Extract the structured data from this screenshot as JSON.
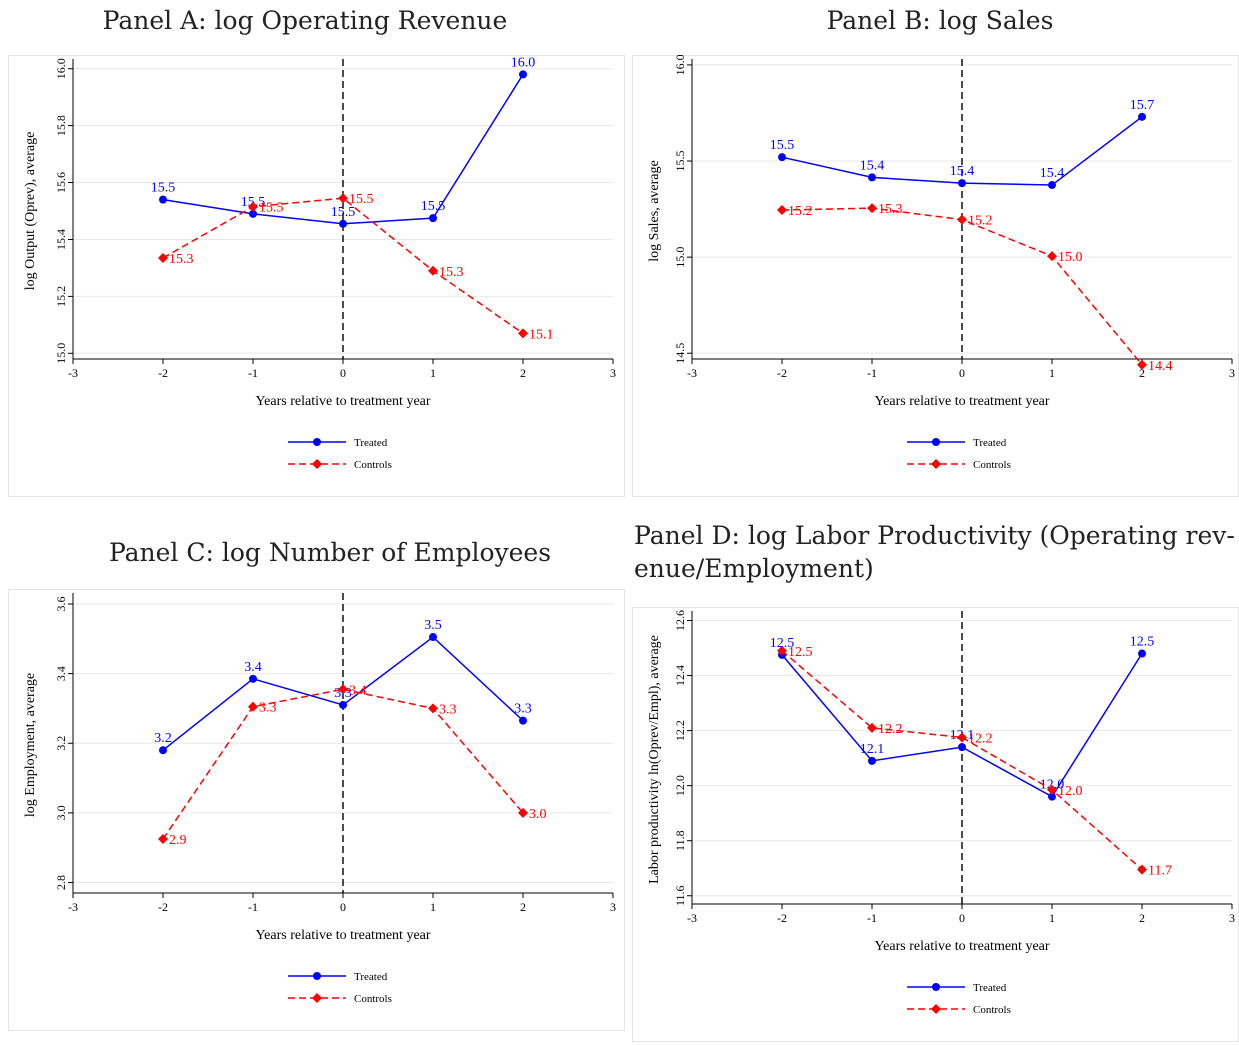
{
  "panels": [
    {
      "title": "Panel A: log Operating Revenue",
      "chart_data": {
        "type": "line",
        "x": [
          -2,
          -1,
          0,
          1,
          2
        ],
        "xticks": [
          -3,
          -2,
          -1,
          0,
          1,
          2,
          3
        ],
        "xlabel": "Years relative to treatment year",
        "ylabel": "log Output (Oprev), average",
        "yticks": [
          "15.0",
          "15.2",
          "15.4",
          "15.6",
          "15.8",
          "16.0"
        ],
        "xlim": [
          -3,
          3
        ],
        "ylim": [
          14.98,
          16.02
        ],
        "grid": true,
        "vline": 0,
        "legend_position": "bottom",
        "series": [
          {
            "name": "Treated",
            "color": "#0000ff",
            "style": "solid",
            "marker": "circle",
            "values": [
              15.54,
              15.49,
              15.455,
              15.475,
              15.98
            ],
            "labels": [
              "15.5",
              "15.5",
              "15.5",
              "15.5",
              "16.0"
            ]
          },
          {
            "name": "Controls",
            "color": "#ff0000",
            "style": "dashed",
            "marker": "diamond",
            "values": [
              15.335,
              15.515,
              15.545,
              15.29,
              15.07
            ],
            "labels": [
              "15.3",
              "15.5",
              "15.5",
              "15.3",
              "15.1"
            ]
          }
        ]
      }
    },
    {
      "title": "Panel B: log Sales",
      "chart_data": {
        "type": "line",
        "x": [
          -2,
          -1,
          0,
          1,
          2
        ],
        "xticks": [
          -3,
          -2,
          -1,
          0,
          1,
          2,
          3
        ],
        "xlabel": "Years relative to treatment year",
        "ylabel": "log Sales, average",
        "yticks": [
          "14.5",
          "15.0",
          "15.5",
          "16.0"
        ],
        "xlim": [
          -3,
          3
        ],
        "ylim": [
          14.47,
          16.01
        ],
        "grid": true,
        "vline": 0,
        "legend_position": "bottom",
        "series": [
          {
            "name": "Treated",
            "color": "#0000ff",
            "style": "solid",
            "marker": "circle",
            "values": [
              15.52,
              15.415,
              15.385,
              15.375,
              15.73
            ],
            "labels": [
              "15.5",
              "15.4",
              "15.4",
              "15.4",
              "15.7"
            ]
          },
          {
            "name": "Controls",
            "color": "#ff0000",
            "style": "dashed",
            "marker": "diamond",
            "values": [
              15.245,
              15.255,
              15.195,
              15.005,
              14.44
            ],
            "labels": [
              "15.2",
              "15.3",
              "15.2",
              "15.0",
              "14.4"
            ]
          }
        ]
      }
    },
    {
      "title": "Panel C: log Number of Employees",
      "chart_data": {
        "type": "line",
        "x": [
          -2,
          -1,
          0,
          1,
          2
        ],
        "xticks": [
          -3,
          -2,
          -1,
          0,
          1,
          2,
          3
        ],
        "xlabel": "Years relative to treatment year",
        "ylabel": "log Employment, average",
        "yticks": [
          "2.8",
          "3.0",
          "3.2",
          "3.4",
          "3.6"
        ],
        "xlim": [
          -3,
          3
        ],
        "ylim": [
          2.77,
          3.62
        ],
        "grid": true,
        "vline": 0,
        "legend_position": "bottom",
        "series": [
          {
            "name": "Treated",
            "color": "#0000ff",
            "style": "solid",
            "marker": "circle",
            "values": [
              3.18,
              3.385,
              3.31,
              3.505,
              3.265
            ],
            "labels": [
              "3.2",
              "3.4",
              "3.3",
              "3.5",
              "3.3"
            ]
          },
          {
            "name": "Controls",
            "color": "#ff0000",
            "style": "dashed",
            "marker": "diamond",
            "values": [
              2.925,
              3.305,
              3.355,
              3.3,
              3.0
            ],
            "labels": [
              "2.9",
              "3.3",
              "3.4",
              "3.3",
              "3.0"
            ]
          }
        ]
      }
    },
    {
      "title": "Panel D: log Labor Productivity (Operating rev- enue/Employment)",
      "chart_data": {
        "type": "line",
        "x": [
          -2,
          -1,
          0,
          1,
          2
        ],
        "xticks": [
          -3,
          -2,
          -1,
          0,
          1,
          2,
          3
        ],
        "xlabel": "Years relative to treatment year",
        "ylabel": "Labor productivity ln(Oprev/Empl), average",
        "yticks": [
          "11.6",
          "11.8",
          "12.0",
          "12.2",
          "12.4",
          "12.6"
        ],
        "xlim": [
          -3,
          3
        ],
        "ylim": [
          11.57,
          12.62
        ],
        "grid": true,
        "vline": 0,
        "legend_position": "bottom",
        "series": [
          {
            "name": "Treated",
            "color": "#0000ff",
            "style": "solid",
            "marker": "circle",
            "values": [
              12.475,
              12.09,
              12.14,
              11.96,
              12.48
            ],
            "labels": [
              "12.5",
              "12.1",
              "12.1",
              "12.0",
              "12.5"
            ]
          },
          {
            "name": "Controls",
            "color": "#ff0000",
            "style": "dashed",
            "marker": "diamond",
            "values": [
              12.49,
              12.21,
              12.175,
              11.985,
              11.695
            ],
            "labels": [
              "12.5",
              "12.2",
              "12.2",
              "12.0",
              "11.7"
            ]
          }
        ]
      }
    }
  ]
}
